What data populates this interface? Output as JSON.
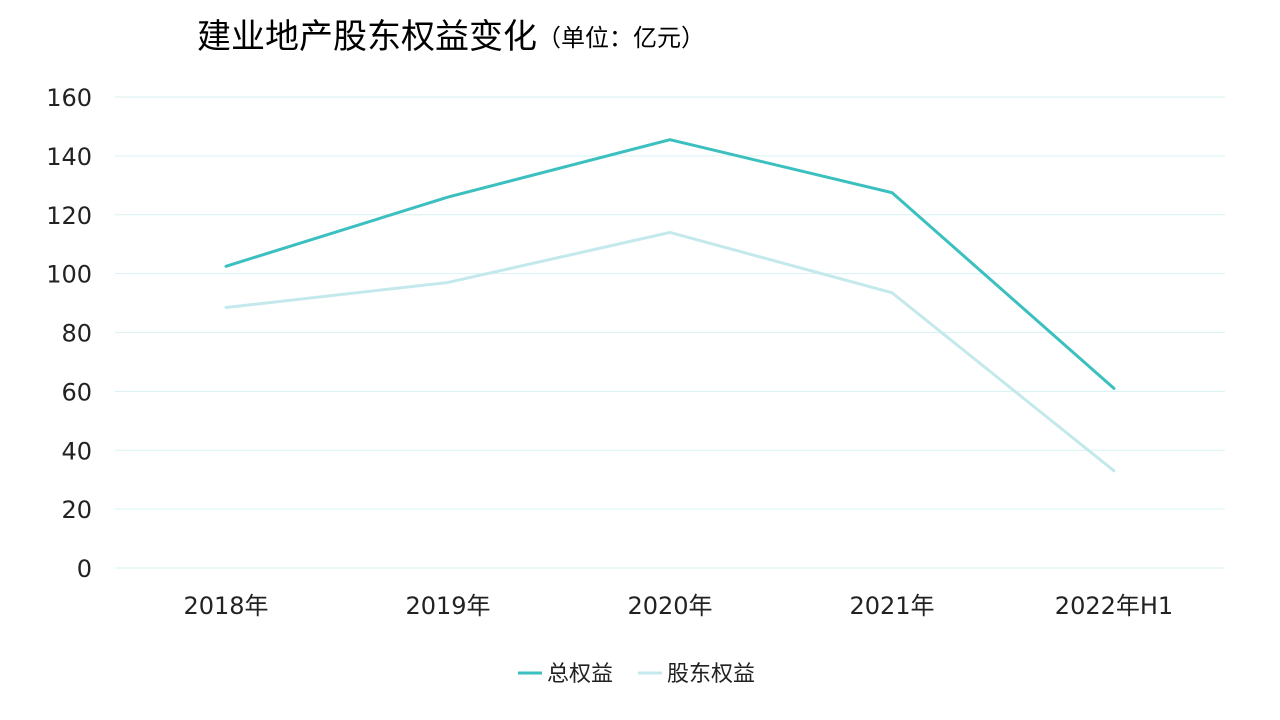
{
  "chart_data": {
    "type": "line",
    "title": "建业地产股东权益变化",
    "subtitle": "（单位：亿元）",
    "xlabel": "",
    "ylabel": "",
    "categories": [
      "2018年",
      "2019年",
      "2020年",
      "2021年",
      "2022年H1"
    ],
    "series": [
      {
        "name": "总权益",
        "values": [
          102.5,
          126,
          145.5,
          127.5,
          61
        ],
        "color": "#3bbfbf"
      },
      {
        "name": "股东权益",
        "values": [
          88.5,
          97,
          114,
          93.5,
          33
        ],
        "color": "#c4e9ec"
      }
    ],
    "ylim": [
      0,
      160
    ],
    "yticks": [
      0,
      20,
      40,
      60,
      80,
      100,
      120,
      140,
      160
    ],
    "grid": true,
    "legend": "bottom-center"
  }
}
